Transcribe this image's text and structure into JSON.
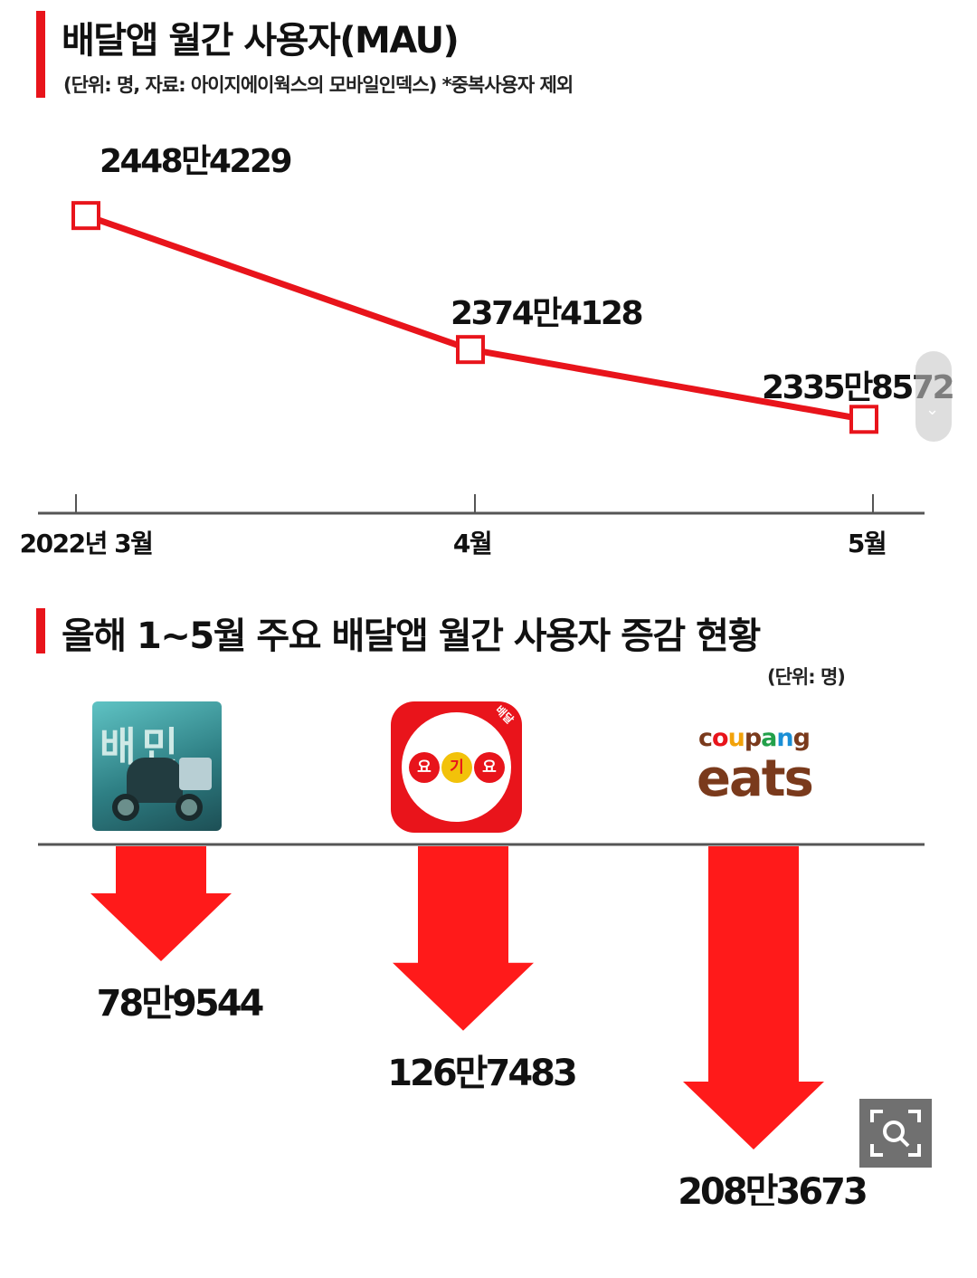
{
  "section1": {
    "title": "배달앱 월간 사용자(MAU)",
    "subtitle": "(단위: 명, 자료: 아이지에이웍스의 모바일인덱스)  *중복사용자 제외"
  },
  "section2": {
    "title": "올해 1~5월 주요 배달앱 월간 사용자 증감 현황",
    "unit": "(단위: 명)"
  },
  "logos": {
    "baemin": {
      "text": "배민"
    },
    "yogiyo": {
      "letters": [
        "요",
        "기",
        "요"
      ],
      "tag": "배달"
    },
    "coupang_eats": {
      "line1": "coupang",
      "line2": "eats"
    }
  },
  "colors": {
    "accent": "#e8141b",
    "arrow_top": "#4a2a24",
    "axis": "#555555"
  },
  "chart_data": [
    {
      "type": "line",
      "categories": [
        "2022년 3월",
        "4월",
        "5월"
      ],
      "values": [
        24484229,
        23744128,
        23358572
      ],
      "data_labels": [
        "2448만4229",
        "2374만4128",
        "2335만8572"
      ],
      "ylim": [
        23200000,
        24600000
      ],
      "grid": false,
      "color": "#e8141b"
    },
    {
      "type": "bar",
      "orientation": "downward-arrows",
      "categories": [
        "배민",
        "요기요",
        "coupang eats"
      ],
      "values": [
        -789544,
        -1267483,
        -2083673
      ],
      "data_labels": [
        "78만9544",
        "126만7483",
        "208만3673"
      ],
      "color": "#e8141b"
    }
  ]
}
